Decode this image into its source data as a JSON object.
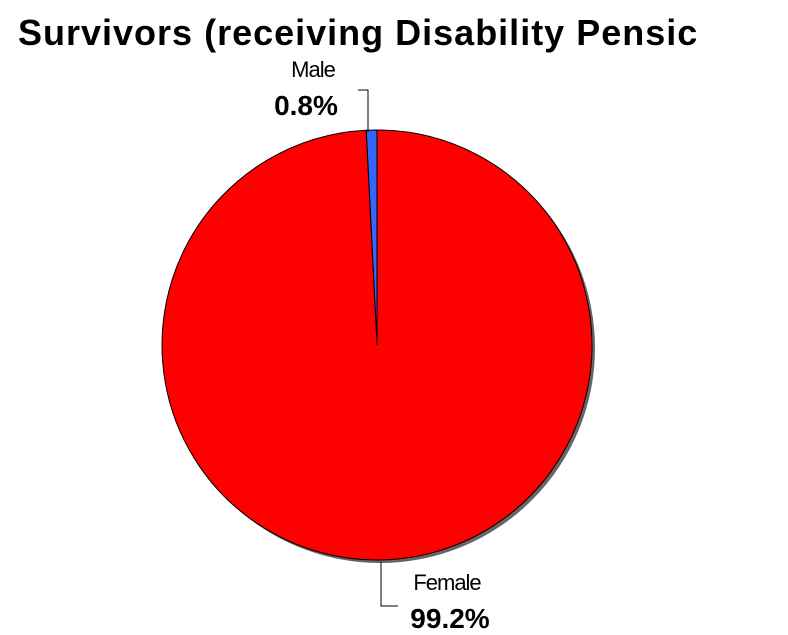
{
  "chart_data": {
    "type": "pie",
    "title": "Survivors (receiving Disability Pensic",
    "slices": [
      {
        "label": "Male",
        "value": 0.8,
        "value_label": "0.8%",
        "color": "#3366ff"
      },
      {
        "label": "Female",
        "value": 99.2,
        "value_label": "99.2%",
        "color": "#ff0000"
      }
    ],
    "start": "top",
    "direction": "clockwise",
    "legend": "none"
  }
}
